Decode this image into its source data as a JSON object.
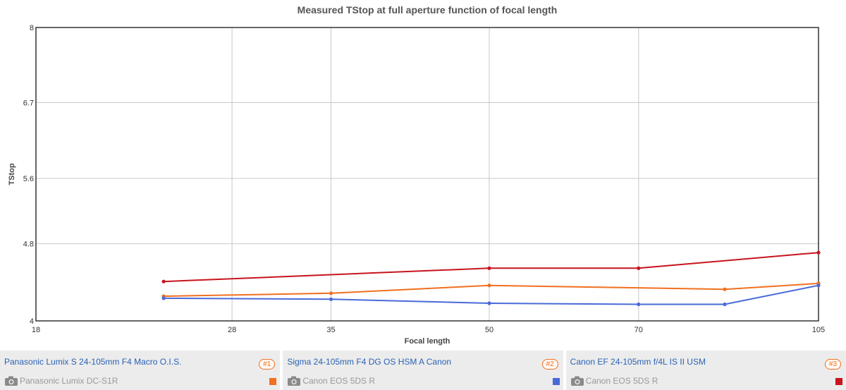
{
  "chart_data": {
    "type": "line",
    "title": "Measured TStop at full aperture function of focal length",
    "xlabel": "Focal length",
    "ylabel": "TStop",
    "xlim": [
      18,
      105
    ],
    "ylim": [
      4,
      8
    ],
    "x_scale": "log",
    "y_scale": "log",
    "x_ticks": [
      18,
      28,
      35,
      50,
      70,
      105
    ],
    "y_ticks": [
      {
        "value": 4,
        "label": "4"
      },
      {
        "value": 4.8,
        "label": "4.8"
      },
      {
        "value": 5.6,
        "label": "5.6"
      },
      {
        "value": 6.7,
        "label": "6.7"
      },
      {
        "value": 8,
        "label": "8"
      }
    ],
    "grid": true,
    "legend": "bottom",
    "series": [
      {
        "color": "#f07020",
        "points": [
          [
            24,
            4.24
          ],
          [
            35,
            4.27
          ],
          [
            50,
            4.35
          ],
          [
            85,
            4.31
          ],
          [
            105,
            4.37
          ]
        ]
      },
      {
        "color": "#4a6ad8",
        "points": [
          [
            24,
            4.22
          ],
          [
            35,
            4.21
          ],
          [
            50,
            4.17
          ],
          [
            70,
            4.16
          ],
          [
            85,
            4.16
          ],
          [
            105,
            4.35
          ]
        ]
      },
      {
        "color": "#c8141e",
        "points": [
          [
            24,
            4.39
          ],
          [
            50,
            4.53
          ],
          [
            70,
            4.53
          ],
          [
            105,
            4.7
          ]
        ]
      }
    ]
  },
  "legend": {
    "items": [
      {
        "lens": "Panasonic Lumix S 24-105mm F4 Macro O.I.S.",
        "badge": "#1",
        "camera": "Panasonic Lumix DC-S1R",
        "color": "#f07020"
      },
      {
        "lens": "Sigma 24-105mm F4 DG OS HSM A Canon",
        "badge": "#2",
        "camera": "Canon EOS 5DS R",
        "color": "#4a6ad8"
      },
      {
        "lens": "Canon EF 24-105mm f/4L IS II USM",
        "badge": "#3",
        "camera": "Canon EOS 5DS R",
        "color": "#c8141e"
      }
    ]
  },
  "icons": {
    "camera": "camera-icon"
  }
}
